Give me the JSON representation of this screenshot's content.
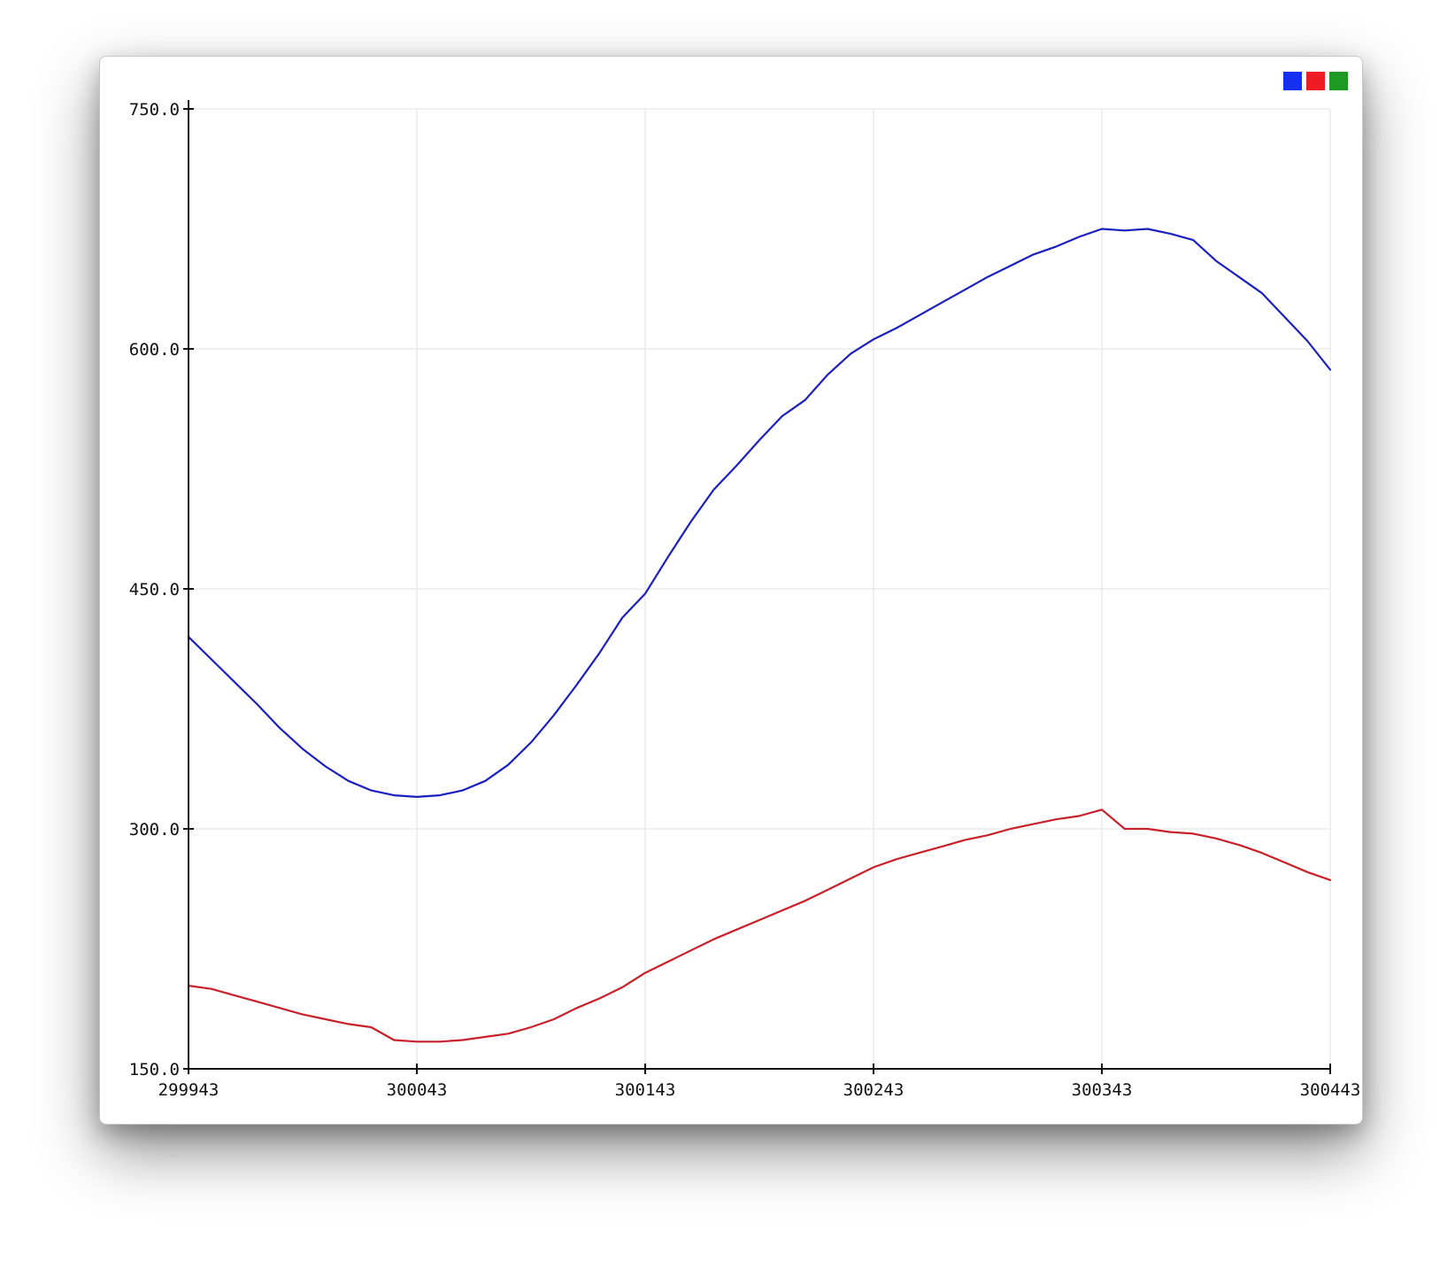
{
  "chart_data": {
    "type": "line",
    "title": "",
    "xlabel": "",
    "ylabel": "",
    "xlim": [
      299943,
      300443
    ],
    "ylim": [
      150,
      750
    ],
    "x_ticks": [
      299943,
      300043,
      300143,
      300243,
      300343,
      300443
    ],
    "x_tick_labels": [
      "299943",
      "300043",
      "300143",
      "300243",
      "300343",
      "300443"
    ],
    "y_ticks": [
      150,
      300,
      450,
      600,
      750
    ],
    "y_tick_labels": [
      "150.0",
      "300.0",
      "450.0",
      "600.0",
      "750.0"
    ],
    "grid": true,
    "legend_position": "top-right",
    "legend_colors": [
      "#1530f0",
      "#f01c24",
      "#1e9a22"
    ],
    "series": [
      {
        "color": "#1a1fbf",
        "x": [
          299943,
          299953,
          299963,
          299973,
          299983,
          299993,
          300003,
          300013,
          300023,
          300033,
          300043,
          300053,
          300063,
          300073,
          300083,
          300093,
          300103,
          300113,
          300123,
          300133,
          300143,
          300153,
          300163,
          300173,
          300183,
          300193,
          300203,
          300213,
          300223,
          300233,
          300243,
          300253,
          300263,
          300273,
          300283,
          300293,
          300303,
          300313,
          300323,
          300333,
          300343,
          300353,
          300363,
          300373,
          300383,
          300393,
          300403,
          300413,
          300423,
          300433,
          300443
        ],
        "y": [
          420,
          406,
          392,
          378,
          363,
          350,
          339,
          330,
          324,
          321,
          320,
          321,
          324,
          330,
          340,
          354,
          371,
          390,
          410,
          432,
          447,
          470,
          492,
          512,
          527,
          543,
          558,
          568,
          584,
          597,
          606,
          613,
          621,
          629,
          637,
          645,
          652,
          659,
          664,
          670,
          675,
          674,
          675,
          672,
          668,
          655,
          645,
          635,
          620,
          605,
          587
        ]
      },
      {
        "color": "#c8202a",
        "x": [
          299943,
          299953,
          299963,
          299973,
          299983,
          299993,
          300003,
          300013,
          300023,
          300033,
          300043,
          300053,
          300063,
          300073,
          300083,
          300093,
          300103,
          300113,
          300123,
          300133,
          300143,
          300153,
          300163,
          300173,
          300183,
          300193,
          300203,
          300213,
          300223,
          300233,
          300243,
          300253,
          300263,
          300273,
          300283,
          300293,
          300303,
          300313,
          300323,
          300333,
          300343,
          300353,
          300363,
          300373,
          300383,
          300393,
          300403,
          300413,
          300423,
          300433,
          300443
        ],
        "y": [
          202,
          200,
          196,
          192,
          188,
          184,
          181,
          178,
          176,
          168,
          167,
          167,
          168,
          170,
          172,
          176,
          181,
          188,
          194,
          201,
          210,
          217,
          224,
          231,
          237,
          243,
          249,
          255,
          262,
          269,
          276,
          281,
          285,
          289,
          293,
          296,
          300,
          303,
          306,
          308,
          312,
          300,
          300,
          298,
          297,
          294,
          290,
          285,
          279,
          273,
          268
        ]
      }
    ]
  }
}
